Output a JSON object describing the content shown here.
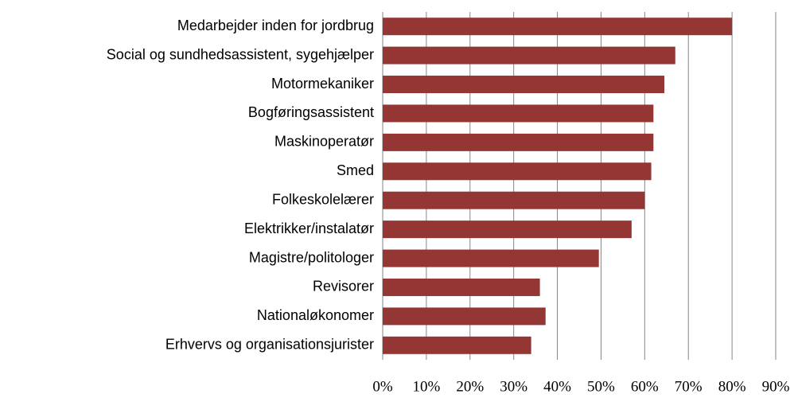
{
  "chart_data": {
    "type": "bar",
    "orientation": "horizontal",
    "categories": [
      "Medarbejder inden for jordbrug",
      "Social og sundhedsassistent, sygehjælper",
      "Motormekaniker",
      "Bogføringsassistent",
      "Maskinoperatør",
      "Smed",
      "Folkeskolelærer",
      "Elektrikker/instalatør",
      "Magistre/politologer",
      "Revisorer",
      "Nationaløkonomer",
      "Erhvervs og organisationsjurister"
    ],
    "values": [
      80,
      67,
      64.5,
      62,
      62,
      61.5,
      60,
      57,
      49.5,
      36,
      37.3,
      34
    ],
    "color": "#943634",
    "xlim": [
      0,
      90
    ],
    "xticks": [
      {
        "value": 0,
        "label": "0%"
      },
      {
        "value": 10,
        "label": "10%"
      },
      {
        "value": 20,
        "label": "20%"
      },
      {
        "value": 30,
        "label": "30%"
      },
      {
        "value": 40,
        "label": "40%"
      },
      {
        "value": 50,
        "label": "50%"
      },
      {
        "value": 60,
        "label": "60%"
      },
      {
        "value": 70,
        "label": "70%"
      },
      {
        "value": 80,
        "label": "80%"
      },
      {
        "value": 90,
        "label": "90%"
      }
    ],
    "grid": true
  }
}
